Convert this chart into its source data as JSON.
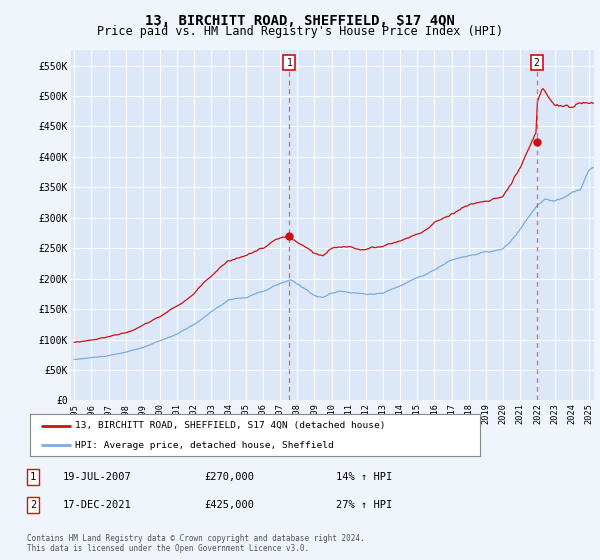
{
  "title": "13, BIRCHITT ROAD, SHEFFIELD, S17 4QN",
  "subtitle": "Price paid vs. HM Land Registry's House Price Index (HPI)",
  "title_fontsize": 10,
  "subtitle_fontsize": 8.5,
  "background_color": "#f0f4fb",
  "plot_bg_color": "#dce8f8",
  "ylim": [
    0,
    575000
  ],
  "yticks": [
    0,
    50000,
    100000,
    150000,
    200000,
    250000,
    300000,
    350000,
    400000,
    450000,
    500000,
    550000
  ],
  "ytick_labels": [
    "£0",
    "£50K",
    "£100K",
    "£150K",
    "£200K",
    "£250K",
    "£300K",
    "£350K",
    "£400K",
    "£450K",
    "£500K",
    "£550K"
  ],
  "xmin_year": 1995.0,
  "xmax_year": 2025.3,
  "xtick_years": [
    1995,
    1996,
    1997,
    1998,
    1999,
    2000,
    2001,
    2002,
    2003,
    2004,
    2005,
    2006,
    2007,
    2008,
    2009,
    2010,
    2011,
    2012,
    2013,
    2014,
    2015,
    2016,
    2017,
    2018,
    2019,
    2020,
    2021,
    2022,
    2023,
    2024,
    2025
  ],
  "hpi_color": "#7aacdc",
  "sale_color": "#cc1111",
  "marker_color": "#cc1111",
  "vline_color": "#e05050",
  "annotation_box_color": "#cc1111",
  "annotation_fill": "#ffffff",
  "legend_label_sale": "13, BIRCHITT ROAD, SHEFFIELD, S17 4QN (detached house)",
  "legend_label_hpi": "HPI: Average price, detached house, Sheffield",
  "sale1_year": 2007.54,
  "sale1_price": 270000,
  "sale1_label": "1",
  "sale2_year": 2021.96,
  "sale2_price": 425000,
  "sale2_label": "2",
  "table_rows": [
    {
      "label": "1",
      "date": "19-JUL-2007",
      "price": "£270,000",
      "hpi": "14% ↑ HPI"
    },
    {
      "label": "2",
      "date": "17-DEC-2021",
      "price": "£425,000",
      "hpi": "27% ↑ HPI"
    }
  ],
  "footer_text": "Contains HM Land Registry data © Crown copyright and database right 2024.\nThis data is licensed under the Open Government Licence v3.0."
}
